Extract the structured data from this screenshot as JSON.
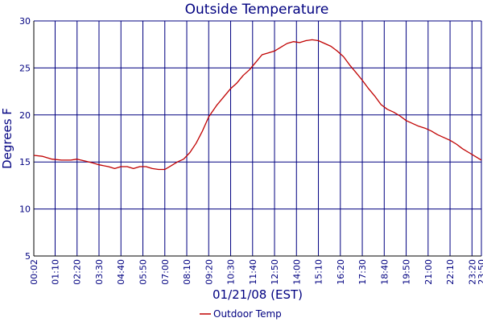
{
  "chart_data": {
    "type": "line",
    "title": "Outside Temperature",
    "xlabel": "01/21/08 (EST)",
    "ylabel": "Degrees F",
    "ylim": [
      5,
      30
    ],
    "yticks": [
      5,
      10,
      15,
      20,
      25,
      30
    ],
    "xlim": [
      "00:02",
      "23:50"
    ],
    "xticks": [
      "00:02",
      "01:10",
      "02:20",
      "03:30",
      "04:40",
      "05:50",
      "07:00",
      "08:10",
      "09:20",
      "10:30",
      "11:40",
      "12:50",
      "14:00",
      "15:10",
      "16:20",
      "17:30",
      "18:40",
      "19:50",
      "21:00",
      "22:10",
      "23:20",
      "23:50"
    ],
    "grid": true,
    "legend_position": "bottom-center",
    "colors": {
      "line": "#c00000",
      "grid": "#000080",
      "text": "#000080",
      "axis": "#000000"
    },
    "series": [
      {
        "name": "Outdoor Temp",
        "x": [
          "00:02",
          "00:30",
          "01:00",
          "01:30",
          "02:00",
          "02:20",
          "02:45",
          "03:10",
          "03:30",
          "04:00",
          "04:20",
          "04:40",
          "05:00",
          "05:20",
          "05:40",
          "06:00",
          "06:20",
          "06:40",
          "07:00",
          "07:20",
          "07:40",
          "08:00",
          "08:20",
          "08:40",
          "09:00",
          "09:20",
          "09:45",
          "10:10",
          "10:30",
          "10:50",
          "11:10",
          "11:30",
          "11:50",
          "12:10",
          "12:30",
          "12:50",
          "13:10",
          "13:30",
          "13:50",
          "14:10",
          "14:30",
          "14:50",
          "15:10",
          "15:30",
          "15:50",
          "16:10",
          "16:30",
          "16:50",
          "17:10",
          "17:30",
          "17:50",
          "18:10",
          "18:30",
          "18:50",
          "19:10",
          "19:30",
          "19:50",
          "20:10",
          "20:30",
          "20:50",
          "21:10",
          "21:30",
          "21:50",
          "22:10",
          "22:30",
          "22:50",
          "23:10",
          "23:30",
          "23:50"
        ],
        "values": [
          15.7,
          15.6,
          15.3,
          15.2,
          15.2,
          15.3,
          15.1,
          14.9,
          14.7,
          14.5,
          14.3,
          14.5,
          14.5,
          14.3,
          14.5,
          14.5,
          14.3,
          14.2,
          14.2,
          14.6,
          15.0,
          15.3,
          16.0,
          17.0,
          18.3,
          19.8,
          21.0,
          22.0,
          22.8,
          23.4,
          24.2,
          24.8,
          25.6,
          26.4,
          26.6,
          26.8,
          27.2,
          27.6,
          27.8,
          27.7,
          27.9,
          28.0,
          27.9,
          27.6,
          27.3,
          26.8,
          26.2,
          25.3,
          24.5,
          23.7,
          22.8,
          22.0,
          21.1,
          20.6,
          20.3,
          19.9,
          19.4,
          19.1,
          18.8,
          18.6,
          18.3,
          17.9,
          17.6,
          17.3,
          16.9,
          16.4,
          16.0,
          15.6,
          15.2
        ]
      }
    ]
  }
}
